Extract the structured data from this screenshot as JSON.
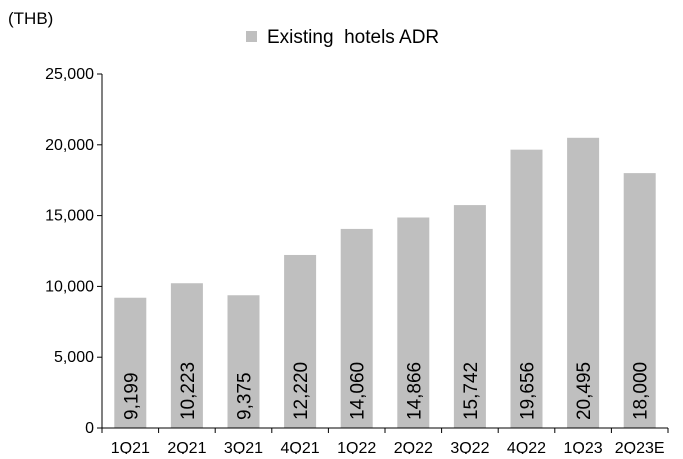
{
  "chart_data": {
    "type": "bar",
    "unit_label": "(THB)",
    "categories": [
      "1Q21",
      "2Q21",
      "3Q21",
      "4Q21",
      "1Q22",
      "2Q22",
      "3Q22",
      "4Q22",
      "1Q23",
      "2Q23E"
    ],
    "series": [
      {
        "name": "Existing  hotels ADR",
        "color": "#bfbfbf",
        "values": [
          9199,
          10223,
          9375,
          12220,
          14060,
          14866,
          15742,
          19656,
          20495,
          18000
        ],
        "data_labels": [
          "9,199",
          "10,223",
          "9,375",
          "12,220",
          "14,060",
          "14,866",
          "15,742",
          "19,656",
          "20,495",
          "18,000"
        ]
      }
    ],
    "ylim": [
      0,
      25000
    ],
    "yticks": [
      0,
      5000,
      10000,
      15000,
      20000,
      25000
    ],
    "ytick_labels": [
      "0",
      "5,000",
      "10,000",
      "15,000",
      "20,000",
      "25,000"
    ],
    "legend_position": "top-center",
    "grid": false,
    "data_label_orientation": "vertical"
  }
}
